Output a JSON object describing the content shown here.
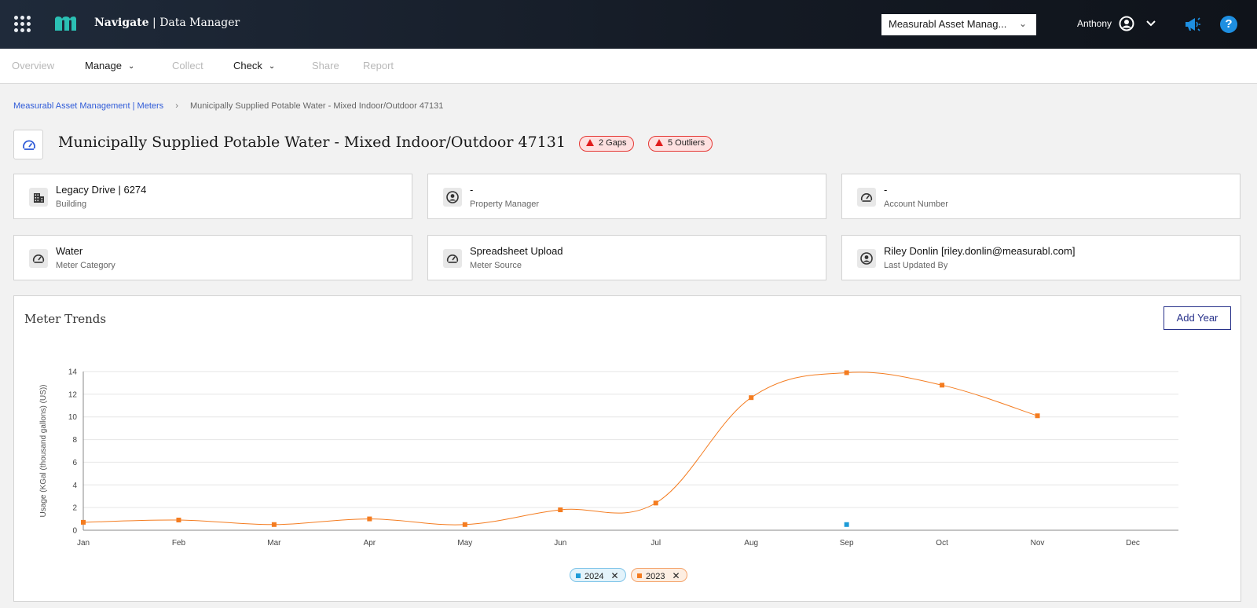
{
  "header": {
    "app_brand": "Navigate",
    "app_sep": " | ",
    "app_section": "Data Manager",
    "org_select_value": "Measurabl Asset Manag...",
    "user_name": "Anthony"
  },
  "nav": {
    "items": [
      {
        "label": "Overview",
        "state": "disabled"
      },
      {
        "label": "Manage",
        "state": "active",
        "dropdown": true
      },
      {
        "label": "Collect",
        "state": "disabled"
      },
      {
        "label": "Check",
        "state": "active",
        "dropdown": true
      },
      {
        "label": "Share",
        "state": "disabled"
      },
      {
        "label": "Report",
        "state": "disabled"
      }
    ]
  },
  "breadcrumb": {
    "parent": "Measurabl Asset Management | Meters",
    "current": "Municipally Supplied Potable Water - Mixed Indoor/Outdoor 47131"
  },
  "page": {
    "title": "Municipally Supplied Potable Water - Mixed Indoor/Outdoor 47131",
    "gaps_badge": "2 Gaps",
    "outliers_badge": "5 Outliers"
  },
  "cards": [
    {
      "value": "Legacy Drive | 6274",
      "label": "Building",
      "icon": "building-icon"
    },
    {
      "value": "-",
      "label": "Property Manager",
      "icon": "user-circle-icon"
    },
    {
      "value": "-",
      "label": "Account Number",
      "icon": "gauge-icon"
    },
    {
      "value": "Water",
      "label": "Meter Category",
      "icon": "gauge-icon"
    },
    {
      "value": "Spreadsheet Upload",
      "label": "Meter Source",
      "icon": "gauge-icon"
    },
    {
      "value": "Riley Donlin [riley.donlin@measurabl.com]",
      "label": "Last Updated By",
      "icon": "user-circle-icon"
    }
  ],
  "trends": {
    "title": "Meter Trends",
    "add_year_label": "Add Year"
  },
  "chart_data": {
    "type": "line",
    "title": "",
    "xlabel": "",
    "ylabel": "Usage (KGal (thousand gallons) (US))",
    "categories": [
      "Jan",
      "Feb",
      "Mar",
      "Apr",
      "May",
      "Jun",
      "Jul",
      "Aug",
      "Sep",
      "Oct",
      "Nov",
      "Dec"
    ],
    "ylim": [
      0,
      14
    ],
    "yticks": [
      0,
      2,
      4,
      6,
      8,
      10,
      12,
      14
    ],
    "grid": true,
    "legend": "bottom-center",
    "series": [
      {
        "name": "2023",
        "color": "#f47c20",
        "values": [
          0.7,
          0.9,
          0.5,
          1.0,
          0.5,
          1.8,
          2.4,
          11.7,
          13.9,
          12.8,
          10.1,
          null
        ]
      },
      {
        "name": "2024",
        "color": "#1e9bd7",
        "values": [
          null,
          null,
          null,
          null,
          null,
          null,
          null,
          null,
          0.5,
          null,
          null,
          null
        ]
      }
    ]
  },
  "colors": {
    "accent": "#2f5bd8",
    "alert": "#e53935",
    "series_2023": "#f47c20",
    "series_2024": "#1e9bd7"
  }
}
